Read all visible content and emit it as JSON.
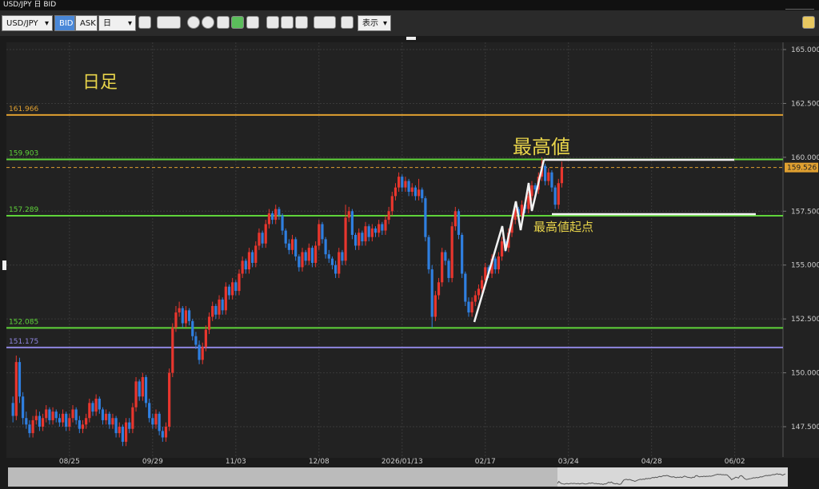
{
  "window_title": "USD/JPY 日 BID",
  "toolbar": {
    "symbol": "USD/JPY",
    "bid": "BID",
    "ask": "ASK",
    "period": "日",
    "display": "表示"
  },
  "chart_data": {
    "type": "candlestick",
    "ohlc": [
      [
        148.6,
        148.9,
        147.7,
        148.0
      ],
      [
        148.0,
        150.8,
        147.8,
        150.5
      ],
      [
        150.5,
        150.7,
        148.6,
        148.9
      ],
      [
        148.9,
        149.1,
        147.6,
        147.9
      ],
      [
        147.9,
        148.2,
        147.4,
        147.6
      ],
      [
        147.6,
        147.8,
        147.0,
        147.2
      ],
      [
        147.2,
        148.0,
        147.0,
        147.8
      ],
      [
        147.8,
        148.3,
        147.6,
        148.0
      ],
      [
        148.0,
        148.2,
        147.3,
        147.5
      ],
      [
        147.5,
        148.1,
        147.3,
        147.9
      ],
      [
        147.9,
        148.5,
        147.7,
        148.3
      ],
      [
        148.3,
        148.4,
        147.6,
        147.8
      ],
      [
        147.8,
        148.4,
        147.6,
        148.2
      ],
      [
        148.2,
        148.3,
        147.7,
        147.9
      ],
      [
        147.9,
        148.1,
        147.5,
        147.7
      ],
      [
        147.7,
        148.3,
        147.5,
        148.1
      ],
      [
        148.1,
        148.2,
        147.3,
        147.5
      ],
      [
        147.5,
        148.1,
        147.3,
        147.9
      ],
      [
        147.9,
        148.5,
        147.7,
        148.3
      ],
      [
        148.3,
        148.4,
        147.6,
        147.8
      ],
      [
        147.8,
        148.0,
        147.2,
        147.4
      ],
      [
        147.4,
        147.8,
        147.2,
        147.6
      ],
      [
        147.6,
        148.1,
        147.4,
        147.9
      ],
      [
        147.9,
        148.8,
        147.7,
        148.6
      ],
      [
        148.6,
        148.7,
        148.0,
        148.2
      ],
      [
        148.2,
        149.0,
        148.0,
        148.8
      ],
      [
        148.8,
        148.9,
        148.1,
        148.3
      ],
      [
        148.3,
        148.4,
        147.6,
        147.8
      ],
      [
        147.8,
        148.3,
        147.6,
        148.1
      ],
      [
        148.1,
        148.2,
        147.4,
        147.6
      ],
      [
        147.6,
        148.1,
        147.4,
        147.9
      ],
      [
        147.9,
        148.0,
        147.0,
        147.2
      ],
      [
        147.2,
        147.7,
        147.0,
        147.5
      ],
      [
        147.5,
        147.6,
        146.6,
        146.8
      ],
      [
        146.8,
        147.9,
        146.6,
        147.7
      ],
      [
        147.7,
        147.9,
        147.2,
        147.4
      ],
      [
        147.4,
        148.6,
        147.2,
        148.4
      ],
      [
        148.4,
        149.8,
        148.2,
        149.6
      ],
      [
        149.6,
        149.7,
        148.7,
        148.9
      ],
      [
        148.9,
        150.0,
        148.7,
        149.8
      ],
      [
        149.8,
        149.9,
        148.4,
        148.6
      ],
      [
        148.6,
        148.8,
        147.7,
        147.9
      ],
      [
        147.9,
        148.1,
        147.4,
        147.6
      ],
      [
        147.6,
        148.3,
        147.4,
        148.1
      ],
      [
        148.1,
        148.2,
        147.1,
        147.3
      ],
      [
        147.3,
        147.5,
        146.8,
        147.0
      ],
      [
        147.0,
        147.7,
        146.8,
        147.5
      ],
      [
        147.5,
        150.2,
        147.3,
        150.0
      ],
      [
        150.0,
        152.3,
        149.8,
        152.1
      ],
      [
        152.1,
        153.1,
        151.9,
        152.8
      ],
      [
        152.8,
        153.3,
        152.6,
        153.0
      ],
      [
        153.0,
        153.1,
        152.1,
        152.3
      ],
      [
        152.3,
        153.1,
        152.1,
        152.9
      ],
      [
        152.9,
        153.0,
        152.2,
        152.4
      ],
      [
        152.4,
        152.5,
        151.5,
        151.7
      ],
      [
        151.7,
        151.9,
        151.1,
        151.3
      ],
      [
        151.3,
        151.5,
        150.4,
        150.6
      ],
      [
        150.6,
        151.4,
        150.4,
        151.2
      ],
      [
        151.2,
        152.2,
        151.0,
        152.0
      ],
      [
        152.0,
        152.8,
        151.8,
        152.6
      ],
      [
        152.6,
        153.3,
        152.4,
        153.1
      ],
      [
        153.1,
        153.2,
        152.5,
        152.7
      ],
      [
        152.7,
        153.6,
        152.5,
        153.4
      ],
      [
        153.4,
        153.5,
        152.7,
        152.9
      ],
      [
        152.9,
        154.2,
        152.7,
        154.0
      ],
      [
        154.0,
        154.1,
        153.4,
        153.6
      ],
      [
        153.6,
        154.4,
        153.4,
        154.2
      ],
      [
        154.2,
        154.3,
        153.6,
        153.8
      ],
      [
        153.8,
        154.8,
        153.6,
        154.6
      ],
      [
        154.6,
        155.4,
        154.4,
        155.2
      ],
      [
        155.2,
        155.3,
        154.6,
        154.8
      ],
      [
        154.8,
        155.8,
        154.6,
        155.6
      ],
      [
        155.6,
        155.7,
        154.9,
        155.1
      ],
      [
        155.1,
        156.1,
        154.9,
        155.9
      ],
      [
        155.9,
        156.7,
        155.7,
        156.5
      ],
      [
        156.5,
        156.6,
        155.8,
        156.0
      ],
      [
        156.0,
        157.1,
        155.8,
        156.9
      ],
      [
        156.9,
        157.6,
        156.7,
        157.4
      ],
      [
        157.4,
        157.5,
        156.9,
        157.1
      ],
      [
        157.1,
        157.8,
        156.9,
        157.6
      ],
      [
        157.6,
        157.7,
        157.1,
        157.3
      ],
      [
        157.3,
        157.4,
        156.4,
        156.6
      ],
      [
        156.6,
        156.7,
        155.8,
        156.0
      ],
      [
        156.0,
        156.2,
        155.5,
        155.7
      ],
      [
        155.7,
        156.4,
        155.5,
        156.2
      ],
      [
        156.2,
        156.3,
        155.2,
        155.4
      ],
      [
        155.4,
        155.5,
        154.7,
        154.9
      ],
      [
        154.9,
        155.8,
        154.7,
        155.6
      ],
      [
        155.6,
        155.7,
        155.0,
        155.2
      ],
      [
        155.2,
        156.0,
        155.0,
        155.8
      ],
      [
        155.8,
        155.9,
        154.9,
        155.1
      ],
      [
        155.1,
        156.1,
        154.9,
        155.9
      ],
      [
        155.9,
        157.1,
        155.7,
        156.9
      ],
      [
        156.9,
        157.0,
        156.0,
        156.2
      ],
      [
        156.2,
        156.3,
        155.3,
        155.5
      ],
      [
        155.5,
        155.7,
        155.1,
        155.3
      ],
      [
        155.3,
        155.4,
        154.8,
        155.0
      ],
      [
        155.0,
        155.2,
        154.4,
        154.6
      ],
      [
        154.6,
        155.8,
        154.4,
        155.6
      ],
      [
        155.6,
        155.7,
        155.0,
        155.2
      ],
      [
        155.2,
        157.8,
        155.0,
        157.2
      ],
      [
        157.2,
        157.7,
        157.0,
        157.5
      ],
      [
        157.5,
        157.6,
        156.2,
        156.4
      ],
      [
        156.4,
        156.5,
        155.7,
        155.9
      ],
      [
        155.9,
        156.7,
        155.7,
        156.5
      ],
      [
        156.5,
        156.6,
        155.9,
        156.1
      ],
      [
        156.1,
        157.0,
        155.9,
        156.8
      ],
      [
        156.8,
        156.9,
        156.1,
        156.3
      ],
      [
        156.3,
        156.9,
        156.1,
        156.7
      ],
      [
        156.7,
        156.8,
        156.3,
        156.5
      ],
      [
        156.5,
        157.1,
        156.3,
        156.9
      ],
      [
        156.9,
        157.0,
        156.4,
        156.6
      ],
      [
        156.6,
        157.3,
        156.4,
        157.1
      ],
      [
        157.1,
        157.7,
        156.9,
        157.5
      ],
      [
        157.5,
        158.4,
        157.3,
        158.2
      ],
      [
        158.2,
        158.8,
        158.0,
        158.6
      ],
      [
        158.6,
        159.3,
        158.4,
        159.1
      ],
      [
        159.1,
        159.2,
        158.4,
        158.6
      ],
      [
        158.6,
        159.1,
        158.4,
        158.9
      ],
      [
        158.9,
        159.0,
        158.2,
        158.4
      ],
      [
        158.4,
        158.8,
        158.2,
        158.6
      ],
      [
        158.6,
        158.7,
        158.0,
        158.2
      ],
      [
        158.2,
        159.0,
        158.0,
        158.5
      ],
      [
        158.5,
        158.6,
        157.9,
        158.1
      ],
      [
        158.1,
        158.2,
        156.1,
        156.3
      ],
      [
        156.3,
        156.4,
        154.6,
        154.8
      ],
      [
        154.8,
        155.0,
        152.1,
        152.6
      ],
      [
        152.6,
        153.8,
        152.4,
        153.6
      ],
      [
        153.6,
        154.4,
        153.4,
        154.2
      ],
      [
        154.2,
        155.8,
        154.0,
        155.6
      ],
      [
        155.6,
        155.7,
        155.0,
        155.2
      ],
      [
        155.2,
        155.3,
        154.2,
        154.4
      ],
      [
        154.4,
        157.0,
        154.2,
        156.8
      ],
      [
        156.8,
        157.7,
        156.6,
        157.5
      ],
      [
        157.5,
        157.6,
        156.2,
        156.4
      ],
      [
        156.4,
        156.5,
        154.4,
        154.6
      ],
      [
        154.6,
        154.7,
        153.1,
        153.3
      ],
      [
        153.3,
        153.5,
        152.6,
        152.8
      ],
      [
        152.8,
        153.5,
        152.6,
        153.3
      ],
      [
        153.3,
        153.8,
        153.1,
        153.6
      ],
      [
        153.6,
        154.1,
        153.4,
        153.9
      ],
      [
        153.9,
        154.5,
        153.7,
        154.3
      ],
      [
        154.3,
        155.1,
        154.1,
        154.9
      ],
      [
        154.9,
        155.0,
        154.4,
        154.6
      ],
      [
        154.6,
        155.5,
        154.4,
        155.3
      ],
      [
        155.3,
        155.4,
        154.6,
        154.8
      ],
      [
        154.8,
        155.6,
        154.6,
        155.4
      ],
      [
        155.4,
        156.3,
        155.2,
        156.1
      ],
      [
        156.1,
        156.2,
        155.6,
        155.8
      ],
      [
        155.8,
        156.7,
        155.6,
        156.5
      ],
      [
        156.5,
        157.3,
        156.3,
        157.1
      ],
      [
        157.1,
        157.8,
        156.9,
        157.6
      ],
      [
        157.6,
        157.7,
        157.1,
        157.3
      ],
      [
        157.3,
        158.0,
        157.1,
        157.8
      ],
      [
        157.8,
        157.9,
        157.4,
        157.6
      ],
      [
        157.6,
        158.4,
        157.4,
        158.2
      ],
      [
        158.2,
        158.9,
        158.0,
        158.7
      ],
      [
        158.7,
        158.8,
        158.3,
        158.5
      ],
      [
        158.5,
        159.3,
        158.3,
        159.1
      ],
      [
        159.1,
        160.0,
        158.9,
        159.6
      ],
      [
        159.6,
        159.7,
        158.7,
        158.9
      ],
      [
        158.9,
        159.5,
        158.7,
        159.3
      ],
      [
        159.3,
        159.4,
        158.4,
        158.6
      ],
      [
        158.6,
        158.7,
        157.6,
        157.8
      ],
      [
        157.8,
        159.0,
        157.6,
        158.8
      ],
      [
        158.8,
        159.8,
        158.6,
        159.526
      ]
    ],
    "up_color": "#e8362e",
    "down_color": "#2f7fe0",
    "xlim": [
      -1,
      231.5
    ],
    "xticks": [
      {
        "value": 17,
        "label": "08/25"
      },
      {
        "value": 42,
        "label": "09/29"
      },
      {
        "value": 67,
        "label": "11/03"
      },
      {
        "value": 92,
        "label": "12/08"
      },
      {
        "value": 117,
        "label": "2026/01/13"
      },
      {
        "value": 142,
        "label": "02/17"
      },
      {
        "value": 167,
        "label": "03/24"
      },
      {
        "value": 192,
        "label": "04/28"
      },
      {
        "value": 217,
        "label": "06/02"
      }
    ],
    "ylim": [
      146.24,
      165.26
    ],
    "yticks": [
      {
        "value": 147.5,
        "label": "147.500"
      },
      {
        "value": 150,
        "label": "150.000"
      },
      {
        "value": 152.5,
        "label": "152.500"
      },
      {
        "value": 155,
        "label": "155.000"
      },
      {
        "value": 157.5,
        "label": "157.500"
      },
      {
        "value": 160,
        "label": "160.000"
      },
      {
        "value": 162.5,
        "label": "162.500"
      },
      {
        "value": 165,
        "label": "165.000"
      }
    ],
    "grid": true,
    "hlines": [
      {
        "value": 161.966,
        "color": "#e0a030"
      },
      {
        "value": 159.903,
        "color": "#5fd43a"
      },
      {
        "value": 157.289,
        "color": "#5fd43a"
      },
      {
        "value": 152.085,
        "color": "#5fd43a"
      },
      {
        "value": 151.175,
        "color": "#8f86e0"
      }
    ],
    "last_price": {
      "value": 159.526,
      "color": "#e0a030"
    },
    "annotations": {
      "timeframe": "日足",
      "high": "最高値",
      "high_origin": "最高値起点"
    }
  }
}
